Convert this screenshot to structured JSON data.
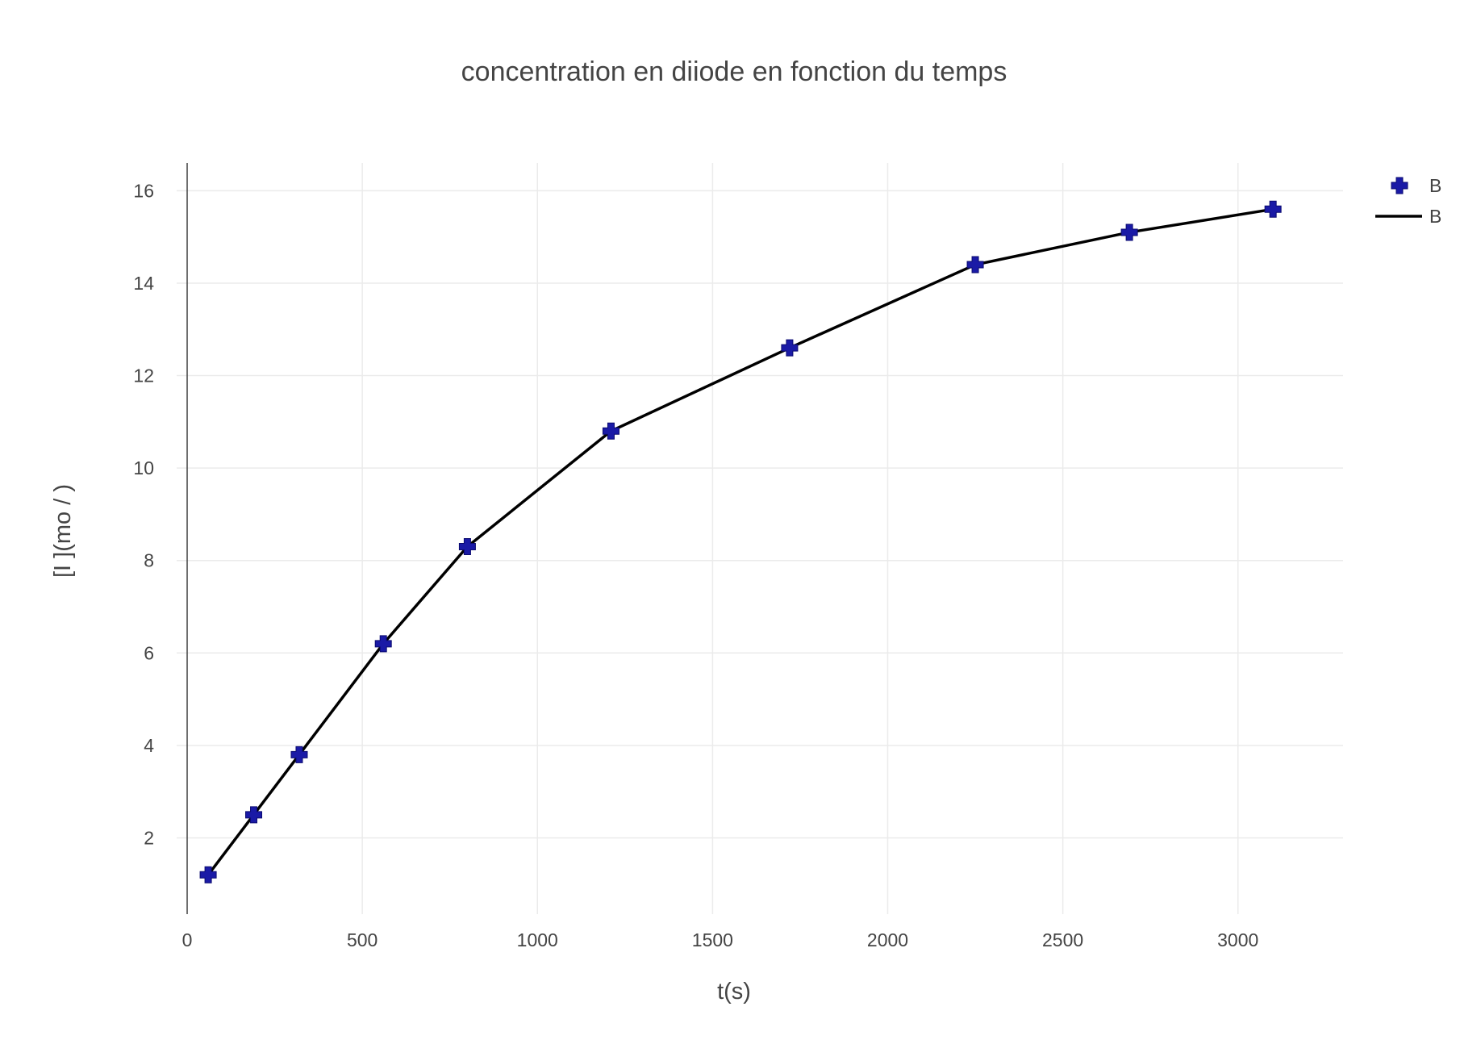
{
  "chart_data": {
    "type": "scatter",
    "title": "concentration en diiode en fonction du temps",
    "xlabel": "t(s)",
    "ylabel": "[I ](mo / )",
    "xlim": [
      -30,
      3300
    ],
    "ylim": [
      0.35,
      16.6
    ],
    "x_ticks": [
      0,
      500,
      1000,
      1500,
      2000,
      2500,
      3000
    ],
    "y_ticks": [
      2,
      4,
      6,
      8,
      10,
      12,
      14,
      16
    ],
    "grid": true,
    "legend_position": "top-right",
    "series": [
      {
        "name": "B",
        "mode": "markers",
        "marker": "cross",
        "color": "#1a1aa6",
        "x": [
          60,
          190,
          320,
          560,
          800,
          1210,
          1720,
          2250,
          2690,
          3100
        ],
        "y": [
          1.2,
          2.5,
          3.8,
          6.2,
          8.3,
          10.8,
          12.6,
          14.4,
          15.1,
          15.6
        ]
      },
      {
        "name": "B",
        "mode": "lines",
        "color": "#000000",
        "x": [
          60,
          190,
          320,
          560,
          800,
          1210,
          1720,
          2250,
          2690,
          3100
        ],
        "y": [
          1.2,
          2.5,
          3.8,
          6.2,
          8.3,
          10.8,
          12.6,
          14.4,
          15.1,
          15.6
        ]
      }
    ]
  }
}
